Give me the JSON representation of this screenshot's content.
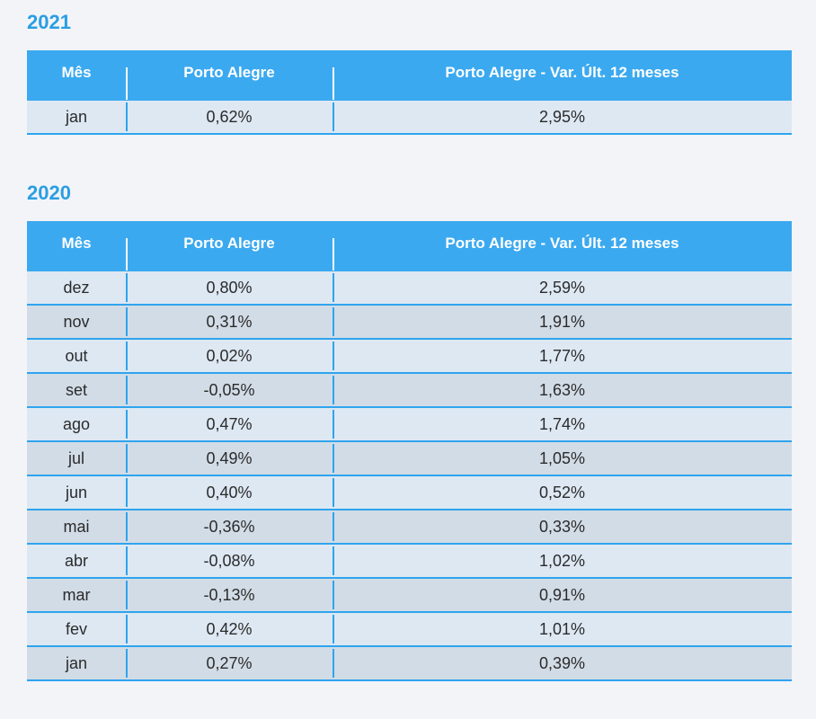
{
  "sections": [
    {
      "year": "2021",
      "headers": [
        "Mês",
        "Porto Alegre",
        "Porto Alegre - Var. Últ. 12 meses"
      ],
      "rows": [
        [
          "jan",
          "0,62%",
          "2,95%"
        ]
      ]
    },
    {
      "year": "2020",
      "headers": [
        "Mês",
        "Porto Alegre",
        "Porto Alegre - Var. Últ. 12 meses"
      ],
      "rows": [
        [
          "dez",
          "0,80%",
          "2,59%"
        ],
        [
          "nov",
          "0,31%",
          "1,91%"
        ],
        [
          "out",
          "0,02%",
          "1,77%"
        ],
        [
          "set",
          "-0,05%",
          "1,63%"
        ],
        [
          "ago",
          "0,47%",
          "1,74%"
        ],
        [
          "jul",
          "0,49%",
          "1,05%"
        ],
        [
          "jun",
          "0,40%",
          "0,52%"
        ],
        [
          "mai",
          "-0,36%",
          "0,33%"
        ],
        [
          "abr",
          "-0,08%",
          "1,02%"
        ],
        [
          "mar",
          "-0,13%",
          "0,91%"
        ],
        [
          "fev",
          "0,42%",
          "1,01%"
        ],
        [
          "jan",
          "0,27%",
          "0,39%"
        ]
      ]
    }
  ],
  "colors": {
    "accent": "#3ba9ef",
    "year_title": "#2a9ee3",
    "row_light": "#dde8f3",
    "row_dark": "#d2dce6",
    "rule": "#2fa4ee",
    "background": "#f2f4f8"
  }
}
